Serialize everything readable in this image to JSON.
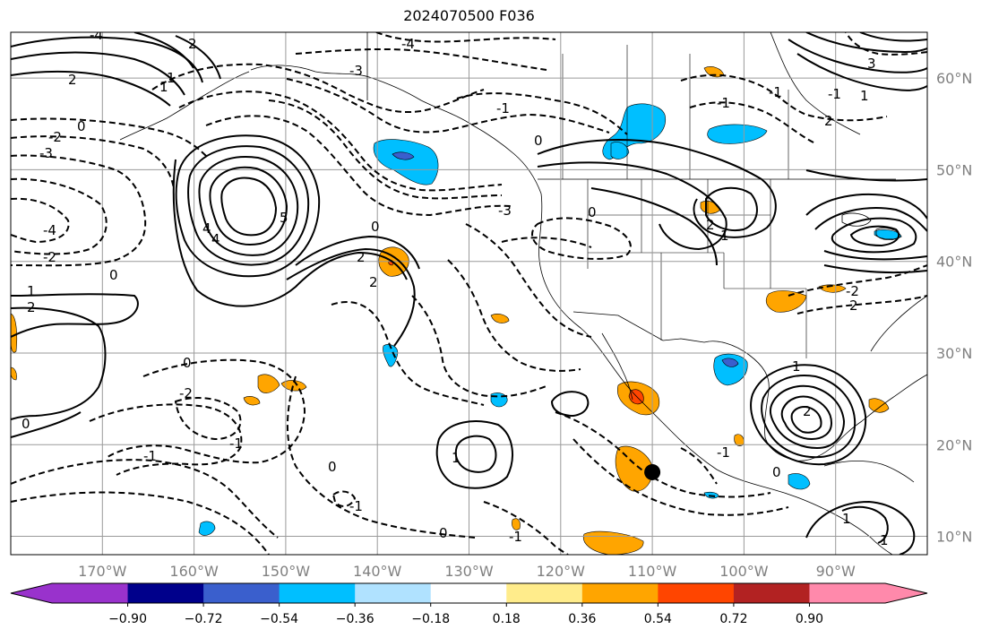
{
  "title": "2024070500 F036",
  "map": {
    "lon_range": [
      -180,
      -80
    ],
    "lat_range": [
      8,
      65
    ],
    "lon_ticks": [
      {
        "value": -170,
        "label": "170°W"
      },
      {
        "value": -160,
        "label": "160°W"
      },
      {
        "value": -150,
        "label": "150°W"
      },
      {
        "value": -140,
        "label": "140°W"
      },
      {
        "value": -130,
        "label": "130°W"
      },
      {
        "value": -120,
        "label": "120°W"
      },
      {
        "value": -110,
        "label": "110°W"
      },
      {
        "value": -100,
        "label": "100°W"
      },
      {
        "value": -90,
        "label": "90°W"
      }
    ],
    "lat_ticks": [
      {
        "value": 60,
        "label": "60°N"
      },
      {
        "value": 50,
        "label": "50°N"
      },
      {
        "value": 40,
        "label": "40°N"
      },
      {
        "value": 30,
        "label": "30°N"
      },
      {
        "value": 20,
        "label": "20°N"
      },
      {
        "value": 10,
        "label": "10°N"
      }
    ],
    "gridlines": true,
    "marker": {
      "lon": -110,
      "lat": 17,
      "color": "#000000"
    }
  },
  "colorbar": {
    "colors": [
      "#9932cc",
      "#00008b",
      "#3a5fcd",
      "#00bfff",
      "#b0e2ff",
      "#ffffff",
      "#ffec8b",
      "#ffa500",
      "#ff4500",
      "#b22222",
      "#ff89ab",
      "#ff89ab"
    ],
    "boundaries": [
      "−0.90",
      "−0.72",
      "−0.54",
      "−0.36",
      "−0.18",
      "0.18",
      "0.36",
      "0.54",
      "0.72",
      "0.90"
    ],
    "extend": "both"
  },
  "contour_labels": {
    "dashed": [
      "-4",
      "-3",
      "-2",
      "-1",
      "0",
      "-4",
      "-3",
      "-2",
      "-1",
      "0",
      "-1",
      "-2",
      "-1",
      "0",
      "-1",
      "0",
      "-3",
      "-4",
      "0",
      "-1",
      "0",
      "-1",
      "0",
      "-2",
      "-1",
      "0",
      "-1"
    ],
    "solid": [
      "4",
      "2",
      "1",
      "0",
      "2",
      "5",
      "4",
      "2",
      "2",
      "1",
      "2",
      "1",
      "0",
      "1",
      "2",
      "2",
      "1",
      "3",
      "1",
      "2",
      "1",
      "2",
      "1",
      "1"
    ]
  }
}
